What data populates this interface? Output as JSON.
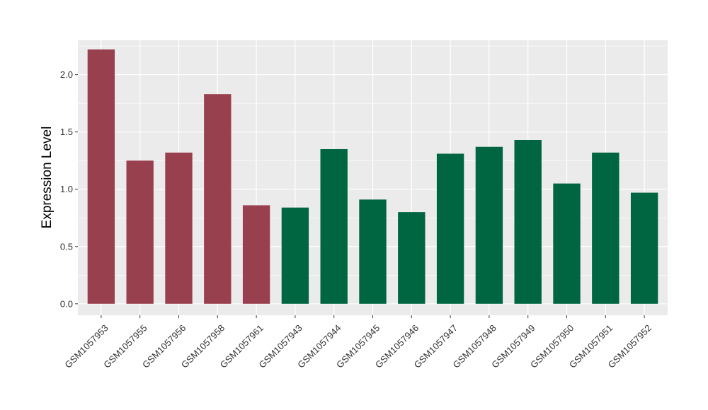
{
  "chart_data": {
    "type": "bar",
    "title": "",
    "xlabel": "",
    "ylabel": "Expression Level",
    "ylim": [
      -0.1,
      2.3
    ],
    "yticks": [
      0.0,
      0.5,
      1.0,
      1.5,
      2.0
    ],
    "ytick_labels": [
      "0.0",
      "0.5",
      "1.0",
      "1.5",
      "2.0"
    ],
    "grid": true,
    "legend": "none",
    "categories": [
      "GSM1057953",
      "GSM1057955",
      "GSM1057956",
      "GSM1057958",
      "GSM1057961",
      "GSM1057943",
      "GSM1057944",
      "GSM1057945",
      "GSM1057946",
      "GSM1057947",
      "GSM1057948",
      "GSM1057949",
      "GSM1057950",
      "GSM1057951",
      "GSM1057952"
    ],
    "values": [
      2.22,
      1.25,
      1.32,
      1.83,
      0.86,
      0.84,
      1.35,
      0.91,
      0.8,
      1.31,
      1.37,
      1.43,
      1.05,
      1.32,
      0.97
    ],
    "colors": [
      "#99404f",
      "#99404f",
      "#99404f",
      "#99404f",
      "#99404f",
      "#006641",
      "#006641",
      "#006641",
      "#006641",
      "#006641",
      "#006641",
      "#006641",
      "#006641",
      "#006641",
      "#006641"
    ],
    "panel_background": "#ebebeb",
    "grid_color": "#ffffff"
  }
}
